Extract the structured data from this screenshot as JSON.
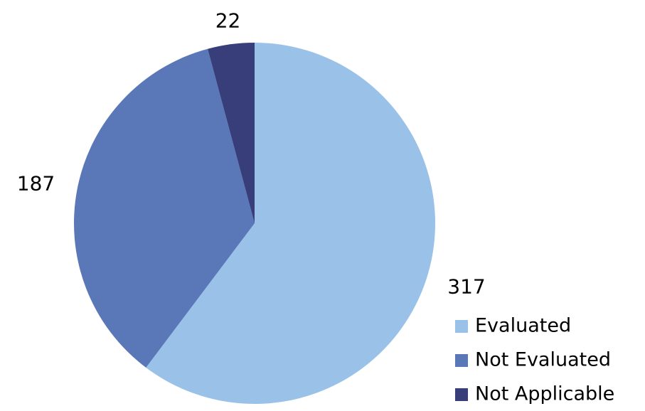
{
  "chart_data": {
    "type": "pie",
    "categories": [
      "Evaluated",
      "Not Evaluated",
      "Not Applicable"
    ],
    "values": [
      317,
      187,
      22
    ],
    "colors": [
      "#9ac2e8",
      "#5a78b8",
      "#383e7a"
    ],
    "start_angle": 0,
    "direction": "clockwise",
    "legend": "lower-right"
  }
}
